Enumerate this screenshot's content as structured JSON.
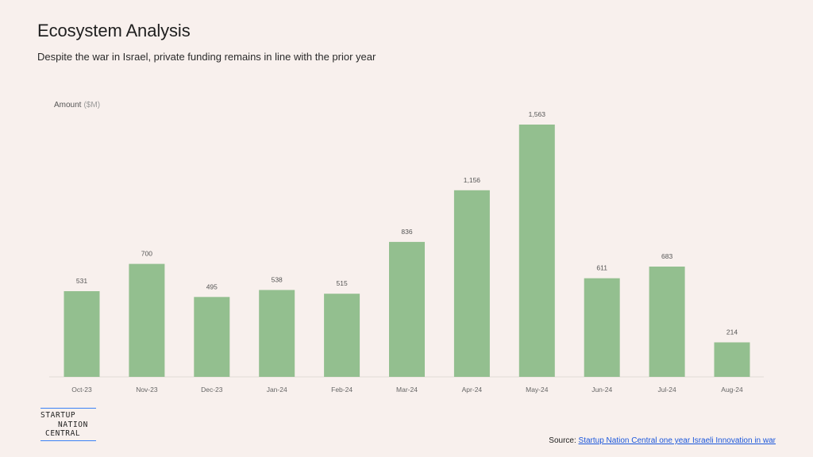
{
  "header": {
    "title": "Ecosystem Analysis",
    "subtitle": "Despite the war in Israel, private funding remains in line with the prior year"
  },
  "chart_data": {
    "type": "bar",
    "ylabel": "Amount",
    "ylabel_unit": "($M)",
    "categories": [
      "Oct-23",
      "Nov-23",
      "Dec-23",
      "Jan-24",
      "Feb-24",
      "Mar-24",
      "Apr-24",
      "May-24",
      "Jun-24",
      "Jul-24",
      "Aug-24"
    ],
    "values": [
      531,
      700,
      495,
      538,
      515,
      836,
      1156,
      1563,
      611,
      683,
      214
    ],
    "data_labels": [
      "531",
      "700",
      "495",
      "538",
      "515",
      "836",
      "1,156",
      "1,563",
      "611",
      "683",
      "214"
    ],
    "ylim": [
      0,
      1563
    ],
    "grid": false,
    "bar_color": "#93bf8f"
  },
  "logo": {
    "line1": "STARTUP",
    "line2": "NATION",
    "line3": "CENTRAL"
  },
  "source": {
    "prefix": "Source: ",
    "link_text": "Startup Nation Central one year Israeli Innovation in war"
  }
}
